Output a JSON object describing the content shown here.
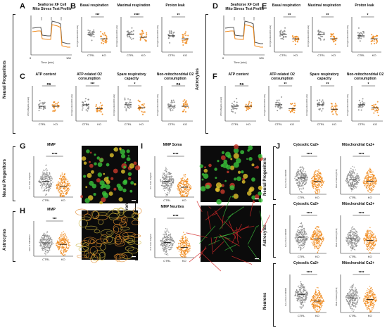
{
  "row_labels": {
    "np_top": "Neural Progenitors",
    "astro_top": "Astrocytes",
    "np_bottom": "Neural Progenitors",
    "astro_bottom": "Astrocytes",
    "neurons_mid": "Neurons",
    "neurons_bottom": "Neurons"
  },
  "panel_letters": [
    "A",
    "B",
    "C",
    "D",
    "E",
    "F",
    "G",
    "H",
    "I",
    "J"
  ],
  "colors": {
    "ctrl": "#8a8a8a",
    "ko": "#f08a1c",
    "ctrl_dark": "#555555",
    "ko_dark": "#c85a00"
  },
  "seahorse_titles": {
    "A": "Seahorse XF  Cell\nMito  Stress Test Profile",
    "D": "Seahorse XF  Cell\nMito  Stress Test Profile"
  },
  "seahorse_axis": {
    "x": "Time [min]",
    "x_ticks": [
      "0",
      "100"
    ]
  },
  "chart_data": [
    {
      "panel": "B",
      "type": "scatter",
      "title": "Basal respiration",
      "sig": "***",
      "categories": [
        "CTRL",
        "KO"
      ],
      "ylabel": "OCR [pmol/min/1000 cells]"
    },
    {
      "panel": "B",
      "type": "scatter",
      "title": "Maximal respiration",
      "sig": "****",
      "categories": [
        "CTRL",
        "KO"
      ],
      "ylabel": "OCR [pmol/min/1000 cells]"
    },
    {
      "panel": "B",
      "type": "scatter",
      "title": "Proton leak",
      "sig": "**",
      "categories": [
        "CTRL",
        "KO"
      ],
      "ylabel": "OCR [pmol/min/1000 cells]"
    },
    {
      "panel": "C",
      "type": "scatter",
      "title": "ATP content",
      "sig": "ns",
      "categories": [
        "CTRL",
        "KO"
      ],
      "ylabel": "ATP [nM/ug/mL protein]"
    },
    {
      "panel": "C",
      "type": "scatter",
      "title": "ATP-related O2 consumption",
      "sig": "***",
      "categories": [
        "CTRL",
        "KO"
      ],
      "ylabel": "OCR [pmol/min/1000 cells]"
    },
    {
      "panel": "C",
      "type": "scatter",
      "title": "Spare respiratory capacity",
      "sig": "*",
      "categories": [
        "CTRL",
        "KO"
      ],
      "ylabel": "OCR [pmol/min/1000 cells]"
    },
    {
      "panel": "C",
      "type": "scatter",
      "title": "Non-mitochondrial O2 consumption",
      "sig": "ns",
      "categories": [
        "CTRL",
        "KO"
      ],
      "ylabel": "OCR [pmol/min/1000 cells]"
    },
    {
      "panel": "E",
      "type": "scatter",
      "title": "Basal respiration",
      "sig": "**",
      "categories": [
        "CTRL",
        "KO"
      ],
      "ylabel": "OCR [pmol/min/1000 cells]"
    },
    {
      "panel": "E",
      "type": "scatter",
      "title": "Maximal respiration",
      "sig": "**",
      "categories": [
        "CTRL",
        "KO"
      ],
      "ylabel": "OCR [pmol/min/1000 cells]"
    },
    {
      "panel": "E",
      "type": "scatter",
      "title": "Proton leak",
      "sig": "*",
      "categories": [
        "CTRL",
        "KO"
      ],
      "ylabel": "OCR [pmol/min/1000 cells]"
    },
    {
      "panel": "F",
      "type": "scatter",
      "title": "ATP content",
      "sig": "ns",
      "categories": [
        "CTRL",
        "KO"
      ],
      "ylabel": "ATP [nM/ug/mL protein]"
    },
    {
      "panel": "F",
      "type": "scatter",
      "title": "ATP-related O2 consumption",
      "sig": "**",
      "categories": [
        "CTRL",
        "KO"
      ],
      "ylabel": "OCR [pmol/min/1000 cells]"
    },
    {
      "panel": "F",
      "type": "scatter",
      "title": "Spare respiratory capacity",
      "sig": "**",
      "categories": [
        "CTRL",
        "KO"
      ],
      "ylabel": "OCR [pmol/min/1000 cells]"
    },
    {
      "panel": "F",
      "type": "scatter",
      "title": "Non-mitochondrial O2 consumption",
      "sig": "*",
      "categories": [
        "CTRL",
        "KO"
      ],
      "ylabel": "OCR [pmol/min/1000 cells]"
    },
    {
      "panel": "G",
      "type": "scatter",
      "title": "MMP",
      "sig": "****",
      "categories": [
        "CTRL",
        "KO"
      ],
      "ylabel": "JC-1 Ratio red/green"
    },
    {
      "panel": "H",
      "type": "scatter",
      "title": "MMP",
      "sig": "***",
      "categories": [
        "CTRL",
        "KO"
      ],
      "ylabel": "Ratio of TMRM/RFU"
    },
    {
      "panel": "I",
      "type": "scatter",
      "title": "MMP Soma",
      "sig": "****",
      "categories": [
        "CTRL",
        "KO"
      ],
      "ylabel": "JC-1 Ratio red/green"
    },
    {
      "panel": "I",
      "type": "scatter",
      "title": "MMP Neurites",
      "sig": "****",
      "categories": [
        "CTRL",
        "KO"
      ],
      "ylabel": "JC-1 Ratio red/green"
    },
    {
      "panel": "J",
      "type": "scatter",
      "title": "Cytosolic Ca2+",
      "sig": "****",
      "categories": [
        "CTRL",
        "KO"
      ],
      "ylabel": "Fura-2 Ratio F340/380"
    },
    {
      "panel": "J",
      "type": "scatter",
      "title": "Mitochondrial  Ca2+",
      "sig": "****",
      "categories": [
        "CTRL",
        "KO"
      ],
      "ylabel": "Rhod-2 Intensity [RFU]"
    },
    {
      "panel": "J",
      "type": "scatter",
      "title": "Cytosolic Ca2+",
      "sig": "****",
      "categories": [
        "CTRL",
        "KO"
      ],
      "ylabel": "Fura-2 Ratio F340/380"
    },
    {
      "panel": "J",
      "type": "scatter",
      "title": "Mitochondrial  Ca2+",
      "sig": "****",
      "categories": [
        "CTRL",
        "KO"
      ],
      "ylabel": "Rhod-2 Intensity [RFU]"
    },
    {
      "panel": "J",
      "type": "scatter",
      "title": "Cytosolic Ca2+",
      "sig": "****",
      "categories": [
        "CTRL",
        "KO"
      ],
      "ylabel": "Fura-2 Ratio F340/380"
    },
    {
      "panel": "J",
      "type": "scatter",
      "title": "Mitochondrial  Ca2+",
      "sig": "****",
      "categories": [
        "CTRL",
        "KO"
      ],
      "ylabel": "Rhod-2 Intensity [RFU]"
    }
  ]
}
